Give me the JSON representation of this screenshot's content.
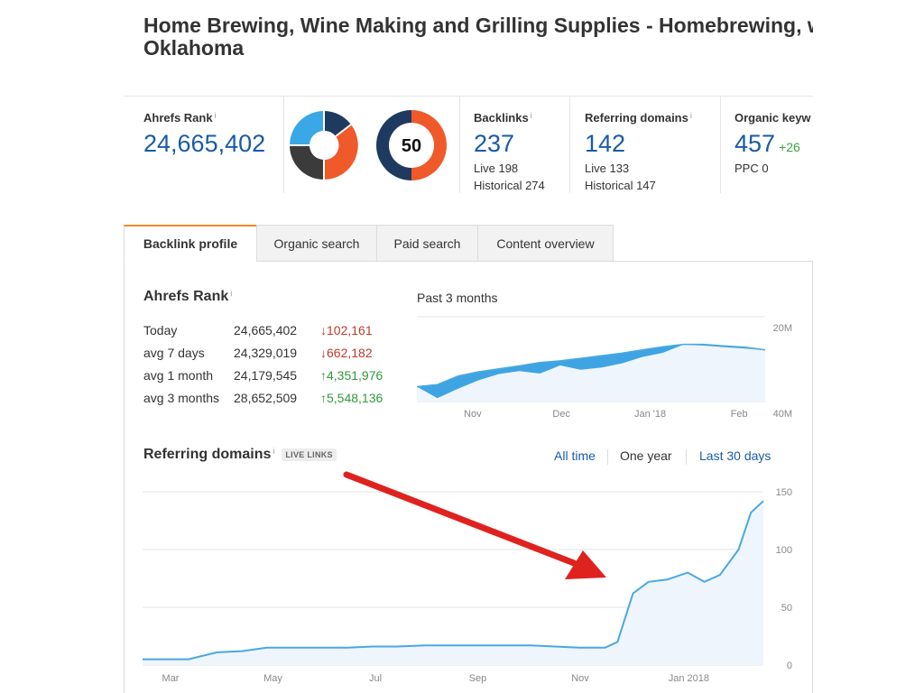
{
  "page": {
    "title": "Home Brewing, Wine Making and Grilling Supplies - Homebrewing, wine making and grilling supplies in Oklahoma",
    "title_line1": "Home Brewing, Wine Making and Grilling Supplies - Homebrewing, w",
    "title_line2": "Oklahoma"
  },
  "stats": {
    "ahrefs_rank": {
      "label": "Ahrefs Rank",
      "info": "i",
      "value": "24,665,402"
    },
    "ur_rating": {
      "value": "50",
      "score": 50
    },
    "backlinks": {
      "label": "Backlinks",
      "info": "i",
      "value": "237",
      "live": "Live 198",
      "historical": "Historical 274"
    },
    "referring_domains": {
      "label": "Referring domains",
      "info": "i",
      "value": "142",
      "live": "Live 133",
      "historical": "Historical 147"
    },
    "organic_keywords": {
      "label": "Organic keyw",
      "value": "457",
      "delta": "+26",
      "ppc": "PPC 0"
    }
  },
  "tabs": [
    {
      "label": "Backlink profile",
      "active": true
    },
    {
      "label": "Organic search",
      "active": false
    },
    {
      "label": "Paid search",
      "active": false
    },
    {
      "label": "Content overview",
      "active": false
    }
  ],
  "rank_section": {
    "title": "Ahrefs Rank",
    "info": "i",
    "rows": [
      {
        "label": "Today",
        "value": "24,665,402",
        "change": "102,161",
        "direction": "down",
        "arrow": "↓"
      },
      {
        "label": "avg 7 days",
        "value": "24,329,019",
        "change": "662,182",
        "direction": "down",
        "arrow": "↓"
      },
      {
        "label": "avg 1 month",
        "value": "24,179,545",
        "change": "4,351,976",
        "direction": "up",
        "arrow": "↑"
      },
      {
        "label": "avg 3 months",
        "value": "28,652,509",
        "change": "5,548,136",
        "direction": "up",
        "arrow": "↑"
      }
    ],
    "period_label": "Past 3 months"
  },
  "referring_section": {
    "title": "Referring domains",
    "info": "i",
    "badge": "LIVE LINKS",
    "ranges": [
      {
        "label": "All time",
        "selected": false
      },
      {
        "label": "One year",
        "selected": true
      },
      {
        "label": "Last 30 days",
        "selected": false
      }
    ]
  },
  "colors": {
    "accent_orange": "#f08a2c",
    "link_blue": "#1a5ba6",
    "chart_line": "#4aa8e0",
    "chart_fill_light": "#eef5fc",
    "chart_fill_dark": "#3fa5e2",
    "arrow_red": "#e0221f",
    "donut_navy": "#1f3a5f",
    "donut_orange": "#f0592a",
    "donut_dark": "#3b3b3b",
    "donut_blue": "#3aa8e6",
    "down_red": "#c0392b",
    "up_green": "#2e9b3a"
  },
  "chart_data": [
    {
      "type": "area",
      "title": "Past 3 months",
      "xlabel": "",
      "ylabel": "",
      "x_ticks": [
        "Nov",
        "Dec",
        "Jan '18",
        "Feb"
      ],
      "y_ticks": [
        "20M",
        "40M"
      ],
      "y_inverted": true,
      "ylim": [
        20000000,
        40000000
      ],
      "x": [
        "Oct 20",
        "Oct 27",
        "Nov 3",
        "Nov 10",
        "Nov 17",
        "Nov 24",
        "Dec 1",
        "Dec 8",
        "Dec 15",
        "Dec 22",
        "Dec 29",
        "Jan 5",
        "Jan 12",
        "Jan 19",
        "Jan 26",
        "Feb 2",
        "Feb 9",
        "Feb 16"
      ],
      "series": [
        {
          "values": [
            36500000,
            36000000,
            34000000,
            33000000,
            32300000,
            31600000,
            30800000,
            30400000,
            29800000,
            29200000,
            28600000,
            27800000,
            27100000,
            26500000,
            26500000,
            26900000,
            27200000,
            27800000
          ]
        },
        {
          "values": [
            36500000,
            39200000,
            37000000,
            35000000,
            33500000,
            32800000,
            33400000,
            31500000,
            32500000,
            32000000,
            31000000,
            29500000,
            28500000,
            26600000,
            26800000,
            27200000,
            27500000,
            27900000
          ]
        }
      ]
    },
    {
      "type": "line",
      "title": "Referring domains",
      "xlabel": "",
      "ylabel": "",
      "x_ticks": [
        "Mar",
        "May",
        "Jul",
        "Sep",
        "Nov",
        "Jan 2018"
      ],
      "y_ticks": [
        0,
        50,
        100,
        150
      ],
      "ylim": [
        0,
        150
      ],
      "x": [
        "Feb 15",
        "Mar 1",
        "Mar 15",
        "Apr 1",
        "Apr 15",
        "May 1",
        "May 15",
        "Jun 1",
        "Jun 15",
        "Jul 1",
        "Jul 15",
        "Aug 1",
        "Aug 15",
        "Sep 1",
        "Sep 15",
        "Oct 1",
        "Oct 15",
        "Nov 1",
        "Nov 15",
        "Nov 22",
        "Dec 1",
        "Dec 10",
        "Dec 20",
        "Jan 1",
        "Jan 10",
        "Jan 20",
        "Feb 1",
        "Feb 10",
        "Feb 20"
      ],
      "series": [
        {
          "values": [
            5,
            5,
            5,
            11,
            12,
            15,
            15,
            15,
            15,
            16,
            16,
            17,
            17,
            17,
            17,
            17,
            16,
            15,
            15,
            20,
            62,
            72,
            74,
            80,
            72,
            78,
            100,
            132,
            142
          ]
        }
      ]
    }
  ]
}
